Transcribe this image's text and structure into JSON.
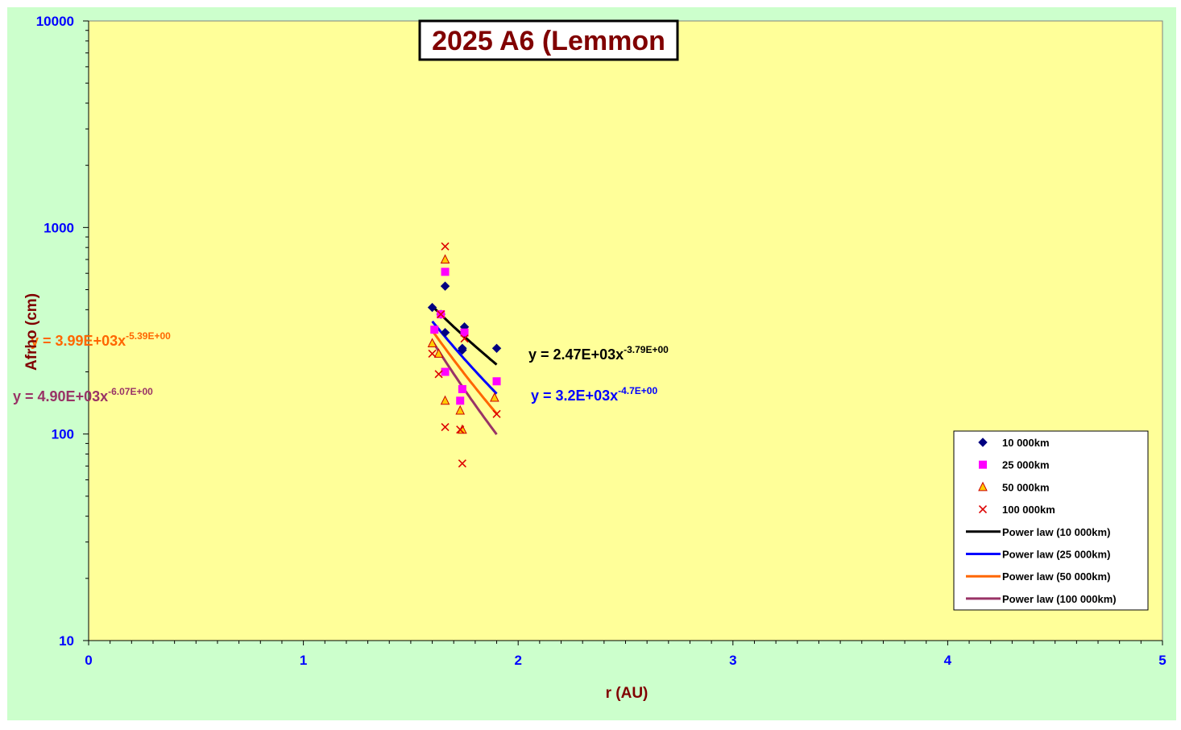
{
  "chart_data": {
    "type": "scatter",
    "title": "2025 A6 (Lemmon",
    "xlabel": "r (AU)",
    "ylabel": "Afrho (cm)",
    "xlim": [
      0,
      5
    ],
    "ylim": [
      10,
      10000
    ],
    "y_scale": "log",
    "x_ticks": [
      "0",
      "1",
      "2",
      "3",
      "4",
      "5"
    ],
    "y_ticks": [
      "10",
      "100",
      "1000",
      "10000"
    ],
    "grid": false,
    "legend_position": "bottom-right",
    "series": [
      {
        "name": "10 000km",
        "marker": "diamond",
        "color": "#000080",
        "x": [
          1.6,
          1.64,
          1.66,
          1.66,
          1.74,
          1.74,
          1.75,
          1.9
        ],
        "y": [
          410,
          380,
          520,
          310,
          260,
          255,
          330,
          260
        ]
      },
      {
        "name": "25 000km",
        "marker": "square",
        "color": "#ff00ff",
        "x": [
          1.61,
          1.64,
          1.66,
          1.66,
          1.73,
          1.74,
          1.75,
          1.9
        ],
        "y": [
          320,
          380,
          610,
          200,
          145,
          165,
          310,
          180
        ]
      },
      {
        "name": "50 000km",
        "marker": "triangle",
        "color": "#ffcc00",
        "x": [
          1.6,
          1.63,
          1.66,
          1.66,
          1.73,
          1.74,
          1.89
        ],
        "y": [
          275,
          245,
          700,
          145,
          130,
          105,
          150
        ]
      },
      {
        "name": "100 000km",
        "marker": "x",
        "color": "#dd0000",
        "x": [
          1.6,
          1.63,
          1.64,
          1.66,
          1.66,
          1.73,
          1.74,
          1.75,
          1.9
        ],
        "y": [
          245,
          195,
          380,
          810,
          108,
          105,
          72,
          290,
          125
        ]
      }
    ],
    "trendlines": [
      {
        "name": "Power law (10 000km)",
        "color": "#000000",
        "a": 2470,
        "b": -3.79,
        "x_range": [
          1.6,
          1.9
        ],
        "eq_main": "y = 2.47E+03x",
        "eq_exp": "-3.79E+00"
      },
      {
        "name": "Power law (25 000km)",
        "color": "#0000ff",
        "a": 3200,
        "b": -4.7,
        "x_range": [
          1.6,
          1.9
        ],
        "eq_main": "y = 3.2E+03x",
        "eq_exp": "-4.7E+00"
      },
      {
        "name": "Power law (50 000km)",
        "color": "#ff6600",
        "a": 3990,
        "b": -5.39,
        "x_range": [
          1.6,
          1.9
        ],
        "eq_main": "y = 3.99E+03x",
        "eq_exp": "-5.39E+00"
      },
      {
        "name": "Power law (100 000km)",
        "color": "#993366",
        "a": 4900,
        "b": -6.07,
        "x_range": [
          1.6,
          1.9
        ],
        "eq_main": "y = 4.90E+03x",
        "eq_exp": "-6.07E+00"
      }
    ],
    "colors": {
      "outer_background": "#ccffcc",
      "plot_background": "#ffff99",
      "tick_labels": "#0000ff",
      "axis_titles": "#800000",
      "title_text": "#800000"
    }
  }
}
